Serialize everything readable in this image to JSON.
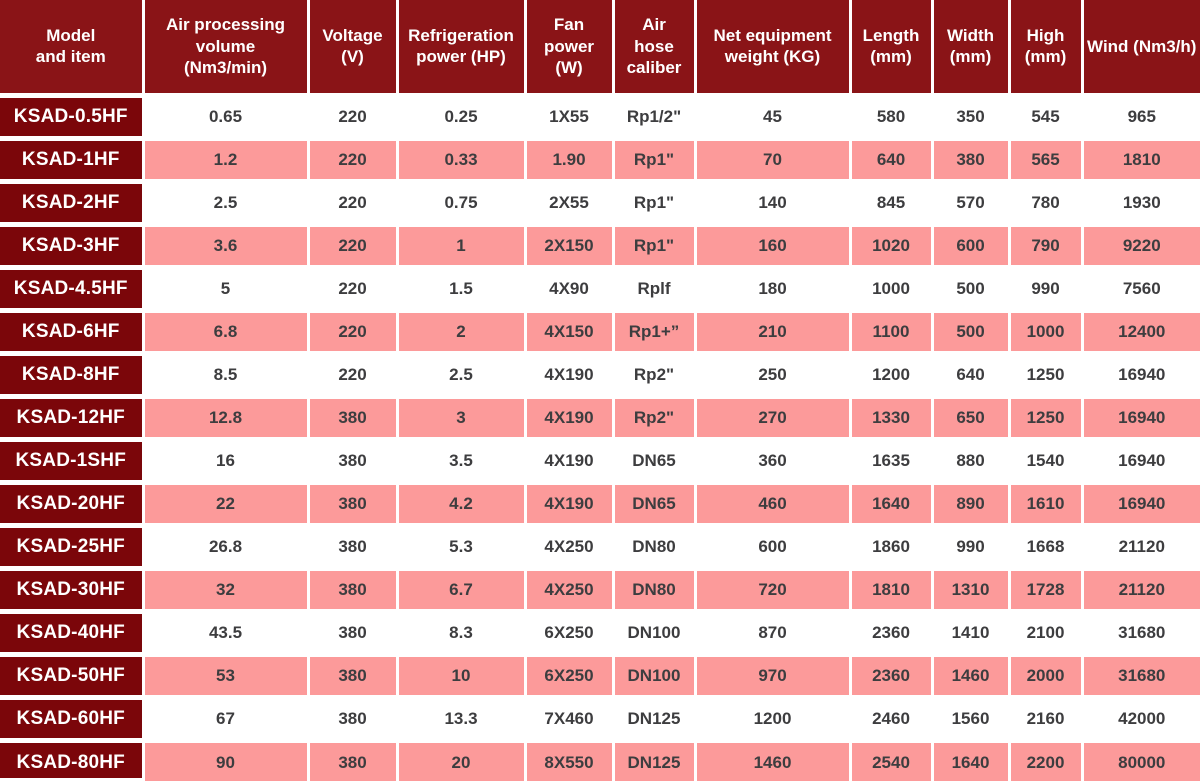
{
  "colors": {
    "header_bg": "#8a1417",
    "model_bg": "#7b060a",
    "stripe_pink": "#fc9a9a",
    "stripe_white": "#ffffff",
    "header_text": "#ffffff",
    "data_text": "#3d3d3f"
  },
  "table": {
    "columns": [
      {
        "id": "model",
        "label": "Model and item"
      },
      {
        "id": "air",
        "label": "Air processing volume (Nm3/min)"
      },
      {
        "id": "voltage",
        "label": "Voltage (V)"
      },
      {
        "id": "refrig",
        "label": "Refrigeration power (HP)"
      },
      {
        "id": "fan",
        "label": "Fan power (W)"
      },
      {
        "id": "hose",
        "label": "Air hose caliber"
      },
      {
        "id": "weight",
        "label": "Net equipment weight (KG)"
      },
      {
        "id": "length",
        "label": "Length (mm)"
      },
      {
        "id": "width",
        "label": "Width (mm)"
      },
      {
        "id": "high",
        "label": "High (mm)"
      },
      {
        "id": "wind",
        "label": "Wind (Nm3/h)"
      }
    ],
    "rows": [
      {
        "model": "KSAD-0.5HF",
        "values": [
          "0.65",
          "220",
          "0.25",
          "1X55",
          "Rp1/2\"",
          "45",
          "580",
          "350",
          "545",
          "965"
        ]
      },
      {
        "model": "KSAD-1HF",
        "values": [
          "1.2",
          "220",
          "0.33",
          "1.90",
          "Rp1\"",
          "70",
          "640",
          "380",
          "565",
          "1810"
        ]
      },
      {
        "model": "KSAD-2HF",
        "values": [
          "2.5",
          "220",
          "0.75",
          "2X55",
          "Rp1\"",
          "140",
          "845",
          "570",
          "780",
          "1930"
        ]
      },
      {
        "model": "KSAD-3HF",
        "values": [
          "3.6",
          "220",
          "1",
          "2X150",
          "Rp1\"",
          "160",
          "1020",
          "600",
          "790",
          "9220"
        ]
      },
      {
        "model": "KSAD-4.5HF",
        "values": [
          "5",
          "220",
          "1.5",
          "4X90",
          "Rplf",
          "180",
          "1000",
          "500",
          "990",
          "7560"
        ]
      },
      {
        "model": "KSAD-6HF",
        "values": [
          "6.8",
          "220",
          "2",
          "4X150",
          "Rp1+”",
          "210",
          "1100",
          "500",
          "1000",
          "12400"
        ]
      },
      {
        "model": "KSAD-8HF",
        "values": [
          "8.5",
          "220",
          "2.5",
          "4X190",
          "Rp2\"",
          "250",
          "1200",
          "640",
          "1250",
          "16940"
        ]
      },
      {
        "model": "KSAD-12HF",
        "values": [
          "12.8",
          "380",
          "3",
          "4X190",
          "Rp2\"",
          "270",
          "1330",
          "650",
          "1250",
          "16940"
        ]
      },
      {
        "model": "KSAD-1SHF",
        "values": [
          "16",
          "380",
          "3.5",
          "4X190",
          "DN65",
          "360",
          "1635",
          "880",
          "1540",
          "16940"
        ]
      },
      {
        "model": "KSAD-20HF",
        "values": [
          "22",
          "380",
          "4.2",
          "4X190",
          "DN65",
          "460",
          "1640",
          "890",
          "1610",
          "16940"
        ]
      },
      {
        "model": "KSAD-25HF",
        "values": [
          "26.8",
          "380",
          "5.3",
          "4X250",
          "DN80",
          "600",
          "1860",
          "990",
          "1668",
          "21120"
        ]
      },
      {
        "model": "KSAD-30HF",
        "values": [
          "32",
          "380",
          "6.7",
          "4X250",
          "DN80",
          "720",
          "1810",
          "1310",
          "1728",
          "21120"
        ]
      },
      {
        "model": "KSAD-40HF",
        "values": [
          "43.5",
          "380",
          "8.3",
          "6X250",
          "DN100",
          "870",
          "2360",
          "1410",
          "2100",
          "31680"
        ]
      },
      {
        "model": "KSAD-50HF",
        "values": [
          "53",
          "380",
          "10",
          "6X250",
          "DN100",
          "970",
          "2360",
          "1460",
          "2000",
          "31680"
        ]
      },
      {
        "model": "KSAD-60HF",
        "values": [
          "67",
          "380",
          "13.3",
          "7X460",
          "DN125",
          "1200",
          "2460",
          "1560",
          "2160",
          "42000"
        ]
      },
      {
        "model": "KSAD-80HF",
        "values": [
          "90",
          "380",
          "20",
          "8X550",
          "DN125",
          "1460",
          "2540",
          "1640",
          "2200",
          "80000"
        ]
      }
    ]
  }
}
